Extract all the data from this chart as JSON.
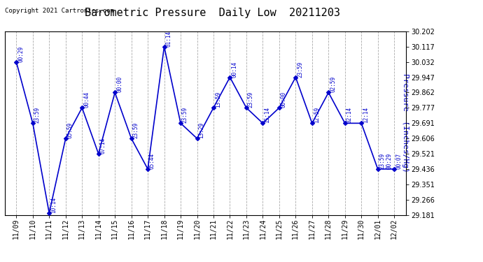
{
  "title": "Barometric Pressure  Daily Low  20211203",
  "ylabel": "Pressure  (Inches/Hg)",
  "copyright": "Copyright 2021 Cartronics.com",
  "bg": "#ffffff",
  "line_color": "#0000cc",
  "blue": "#0000cc",
  "black": "#000000",
  "dates": [
    "11/09",
    "11/10",
    "11/11",
    "11/12",
    "11/13",
    "11/14",
    "11/15",
    "11/16",
    "11/17",
    "11/18",
    "11/19",
    "11/20",
    "11/21",
    "11/22",
    "11/23",
    "11/24",
    "11/25",
    "11/26",
    "11/27",
    "11/28",
    "11/29",
    "11/30",
    "12/01",
    "12/02"
  ],
  "values": [
    30.032,
    29.691,
    29.191,
    29.606,
    29.777,
    29.521,
    29.862,
    29.606,
    29.436,
    30.117,
    29.691,
    29.606,
    29.777,
    29.947,
    29.777,
    29.691,
    29.777,
    29.947,
    29.691,
    29.862,
    29.691,
    29.691,
    29.436,
    29.436
  ],
  "time_labels": [
    "00:29",
    "23:59",
    "10:14",
    "05:59",
    "00:44",
    "07:14",
    "00:00",
    "23:59",
    "05:44",
    "01:14",
    "23:59",
    "13:29",
    "13:59",
    "00:14",
    "23:59",
    "15:14",
    "00:00",
    "23:59",
    "12:59",
    "02:59",
    "02:14",
    "12:14",
    "23:59\n00:29",
    "00:07"
  ],
  "ylim_min": 29.181,
  "ylim_max": 30.202,
  "yticks": [
    29.181,
    29.266,
    29.351,
    29.436,
    29.521,
    29.606,
    29.691,
    29.777,
    29.862,
    29.947,
    30.032,
    30.117,
    30.202
  ],
  "title_fontsize": 11,
  "tick_fontsize": 7,
  "label_fontsize": 5.5,
  "ylabel_fontsize": 8
}
